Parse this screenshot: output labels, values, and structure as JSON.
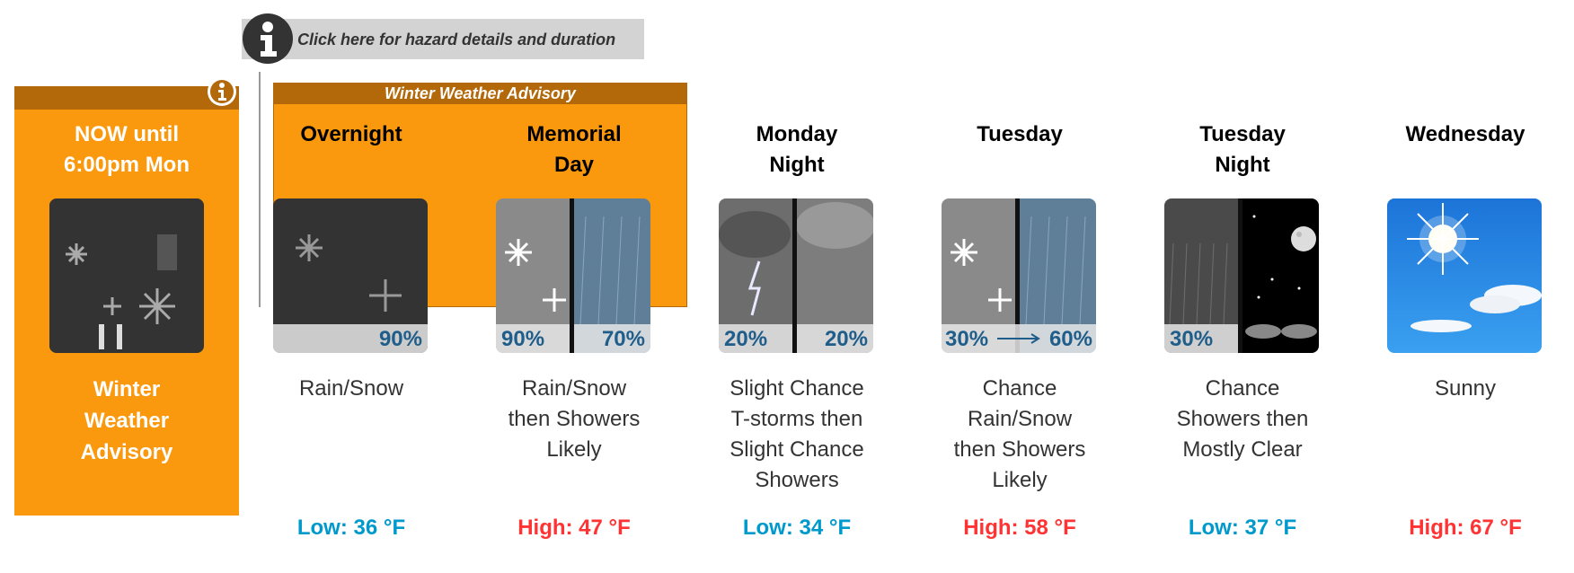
{
  "hazard_link": {
    "label": "Click here for hazard details and duration",
    "icon": "info-icon"
  },
  "now": {
    "title": [
      "NOW until",
      "6:00pm Mon"
    ],
    "description": [
      "Winter",
      "Weather",
      "Advisory"
    ],
    "background_color": "#fa990e",
    "bar_color": "#b3690a"
  },
  "advisory": {
    "label": "Winter Weather Advisory",
    "color": "#fa990e"
  },
  "colors": {
    "low_temp": "#0099cc",
    "high_temp": "#ff3333"
  },
  "forecast": [
    {
      "period": [
        "Overnight"
      ],
      "precip": [
        "90%"
      ],
      "description": [
        "Rain/Snow"
      ],
      "temp": "Low: 36 °F",
      "temp_type": "low",
      "icon": "rain-snow-icon"
    },
    {
      "period": [
        "Memorial",
        "Day"
      ],
      "precip": [
        "90%",
        "70%"
      ],
      "description": [
        "Rain/Snow",
        "then Showers",
        "Likely"
      ],
      "temp": "High: 47 °F",
      "temp_type": "high",
      "icon": "rain-snow-then-showers-icon"
    },
    {
      "period": [
        "Monday",
        "Night"
      ],
      "precip": [
        "20%",
        "20%"
      ],
      "description": [
        "Slight Chance",
        "T-storms then",
        "Slight Chance",
        "Showers"
      ],
      "temp": "Low: 34 °F",
      "temp_type": "low",
      "icon": "tstorms-then-showers-icon"
    },
    {
      "period": [
        "Tuesday"
      ],
      "precip": [
        "30%",
        "60%"
      ],
      "description": [
        "Chance",
        "Rain/Snow",
        "then Showers",
        "Likely"
      ],
      "temp": "High: 58 °F",
      "temp_type": "high",
      "icon": "rain-snow-then-showers-icon"
    },
    {
      "period": [
        "Tuesday",
        "Night"
      ],
      "precip": [
        "30%"
      ],
      "description": [
        "Chance",
        "Showers then",
        "Mostly Clear"
      ],
      "temp": "Low: 37 °F",
      "temp_type": "low",
      "icon": "showers-then-clear-night-icon"
    },
    {
      "period": [
        "Wednesday"
      ],
      "precip": [],
      "description": [
        "Sunny"
      ],
      "temp": "High: 67 °F",
      "temp_type": "high",
      "icon": "sunny-icon"
    }
  ]
}
